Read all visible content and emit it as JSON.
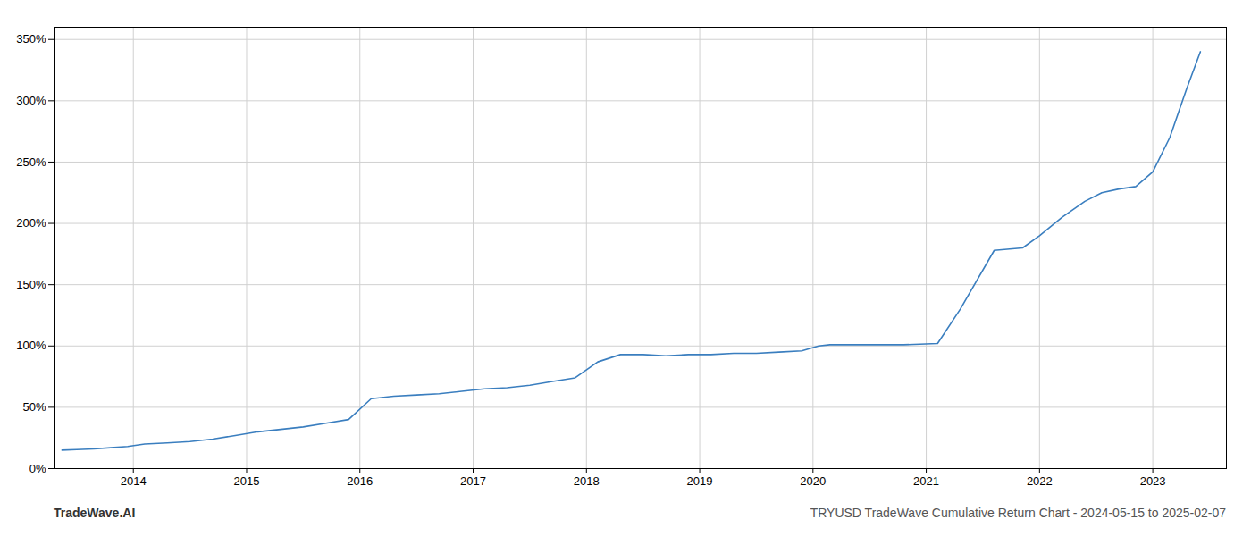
{
  "chart_data": {
    "type": "line",
    "title": "TRYUSD TradeWave Cumulative Return Chart - 2024-05-15 to 2025-02-07",
    "annotations": [
      "TradeWave.AI"
    ],
    "color": "#3a7ebf",
    "x": [
      2013.37,
      2013.5,
      2013.65,
      2013.8,
      2013.95,
      2014.1,
      2014.3,
      2014.5,
      2014.7,
      2014.9,
      2015.1,
      2015.3,
      2015.5,
      2015.7,
      2015.9,
      2016.1,
      2016.3,
      2016.5,
      2016.7,
      2016.9,
      2017.1,
      2017.3,
      2017.5,
      2017.7,
      2017.9,
      2018.1,
      2018.3,
      2018.5,
      2018.7,
      2018.9,
      2019.1,
      2019.3,
      2019.5,
      2019.7,
      2019.9,
      2020.05,
      2020.15,
      2020.3,
      2020.5,
      2020.8,
      2021.1,
      2021.3,
      2021.6,
      2021.85,
      2022.0,
      2022.2,
      2022.4,
      2022.55,
      2022.7,
      2022.85,
      2023.0,
      2023.15,
      2023.3,
      2023.42
    ],
    "values": [
      15,
      15.5,
      16,
      17,
      18,
      20,
      21,
      22,
      24,
      27,
      30,
      32,
      34,
      37,
      40,
      57,
      59,
      60,
      61,
      63,
      65,
      66,
      68,
      71,
      74,
      87,
      93,
      93,
      92,
      93,
      93,
      94,
      94,
      95,
      96,
      100,
      101,
      101,
      101,
      101,
      102,
      130,
      178,
      180,
      190,
      205,
      218,
      225,
      228,
      230,
      242,
      270,
      310,
      340
    ],
    "xlim": [
      2013.3,
      2023.65
    ],
    "xticks": [
      2014,
      2015,
      2016,
      2017,
      2018,
      2019,
      2020,
      2021,
      2022,
      2023
    ],
    "ylim": [
      0,
      360
    ],
    "yticks": [
      {
        "value": 0,
        "label": "0%"
      },
      {
        "value": 50,
        "label": "50%"
      },
      {
        "value": 100,
        "label": "100%"
      },
      {
        "value": 150,
        "label": "150%"
      },
      {
        "value": 200,
        "label": "200%"
      },
      {
        "value": 250,
        "label": "250%"
      },
      {
        "value": 300,
        "label": "300%"
      },
      {
        "value": 350,
        "label": "350%"
      }
    ],
    "grid": true
  }
}
